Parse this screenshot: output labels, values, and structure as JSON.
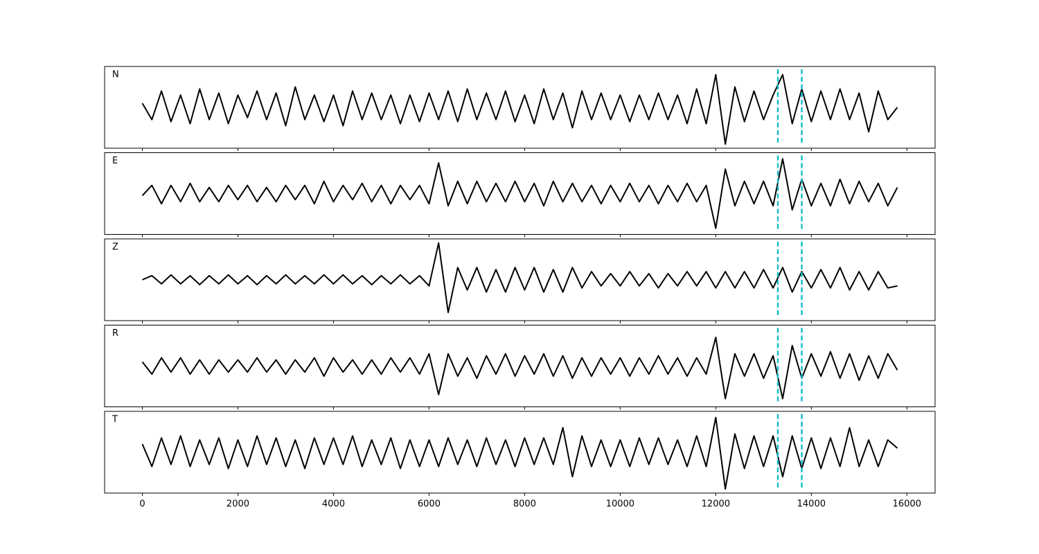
{
  "chart_data": {
    "type": "line",
    "x": [
      0,
      200,
      400,
      600,
      800,
      1000,
      1200,
      1400,
      1600,
      1800,
      2000,
      2200,
      2400,
      2600,
      2800,
      3000,
      3200,
      3400,
      3600,
      3800,
      4000,
      4200,
      4400,
      4600,
      4800,
      5000,
      5200,
      5400,
      5600,
      5800,
      6000,
      6200,
      6400,
      6600,
      6800,
      7000,
      7200,
      7400,
      7600,
      7800,
      8000,
      8200,
      8400,
      8600,
      8800,
      9000,
      9200,
      9400,
      9600,
      9800,
      10000,
      10200,
      10400,
      10600,
      10800,
      11000,
      11200,
      11400,
      11600,
      11800,
      12000,
      12200,
      12400,
      12600,
      12800,
      13000,
      13200,
      13400,
      13600,
      13800,
      14000,
      14200,
      14400,
      14600,
      14800,
      15000,
      15200,
      15400,
      15600,
      15800
    ],
    "xlim": [
      -790,
      16590
    ],
    "xticks": [
      0,
      2000,
      4000,
      6000,
      8000,
      10000,
      12000,
      14000,
      16000
    ],
    "ylim": [
      -1,
      1
    ],
    "vlines": {
      "x": [
        13300,
        13800
      ],
      "color": "#17becf",
      "style": "dashed"
    },
    "series": [
      {
        "name": "N",
        "color": "#000000",
        "values": [
          0.1,
          -0.3,
          0.4,
          -0.35,
          0.3,
          -0.4,
          0.45,
          -0.3,
          0.35,
          -0.4,
          0.3,
          -0.25,
          0.4,
          -0.3,
          0.35,
          -0.45,
          0.5,
          -0.3,
          0.3,
          -0.35,
          0.3,
          -0.45,
          0.4,
          -0.3,
          0.35,
          -0.3,
          0.3,
          -0.4,
          0.3,
          -0.35,
          0.35,
          -0.3,
          0.4,
          -0.35,
          0.45,
          -0.3,
          0.35,
          -0.3,
          0.4,
          -0.35,
          0.3,
          -0.4,
          0.45,
          -0.3,
          0.35,
          -0.5,
          0.4,
          -0.3,
          0.35,
          -0.3,
          0.3,
          -0.35,
          0.3,
          -0.3,
          0.35,
          -0.3,
          0.3,
          -0.4,
          0.45,
          -0.4,
          0.8,
          -0.9,
          0.5,
          -0.35,
          0.4,
          -0.3,
          0.3,
          0.8,
          -0.4,
          0.45,
          -0.35,
          0.4,
          -0.3,
          0.45,
          -0.3,
          0.35,
          -0.6,
          0.4,
          -0.3,
          0.0
        ]
      },
      {
        "name": "E",
        "color": "#000000",
        "values": [
          -0.05,
          0.2,
          -0.25,
          0.2,
          -0.2,
          0.25,
          -0.2,
          0.15,
          -0.2,
          0.2,
          -0.15,
          0.2,
          -0.2,
          0.15,
          -0.2,
          0.2,
          -0.15,
          0.2,
          -0.25,
          0.3,
          -0.2,
          0.2,
          -0.15,
          0.25,
          -0.2,
          0.2,
          -0.25,
          0.2,
          -0.15,
          0.2,
          -0.25,
          0.75,
          -0.3,
          0.3,
          -0.25,
          0.3,
          -0.2,
          0.25,
          -0.2,
          0.3,
          -0.2,
          0.25,
          -0.3,
          0.3,
          -0.2,
          0.25,
          -0.2,
          0.2,
          -0.25,
          0.2,
          -0.2,
          0.25,
          -0.2,
          0.2,
          -0.25,
          0.2,
          -0.2,
          0.25,
          -0.2,
          0.2,
          -0.85,
          0.6,
          -0.3,
          0.3,
          -0.25,
          0.3,
          -0.3,
          0.85,
          -0.4,
          0.35,
          -0.3,
          0.25,
          -0.3,
          0.35,
          -0.25,
          0.3,
          -0.2,
          0.25,
          -0.3,
          0.15
        ]
      },
      {
        "name": "Z",
        "color": "#000000",
        "values": [
          0.0,
          0.1,
          -0.1,
          0.12,
          -0.1,
          0.1,
          -0.12,
          0.1,
          -0.1,
          0.12,
          -0.1,
          0.1,
          -0.12,
          0.1,
          -0.1,
          0.12,
          -0.1,
          0.1,
          -0.1,
          0.12,
          -0.1,
          0.12,
          -0.1,
          0.1,
          -0.12,
          0.1,
          -0.1,
          0.12,
          -0.1,
          0.1,
          -0.15,
          0.9,
          -0.8,
          0.3,
          -0.25,
          0.3,
          -0.3,
          0.25,
          -0.3,
          0.3,
          -0.25,
          0.3,
          -0.3,
          0.25,
          -0.3,
          0.3,
          -0.2,
          0.2,
          -0.15,
          0.15,
          -0.15,
          0.2,
          -0.15,
          0.15,
          -0.2,
          0.15,
          -0.15,
          0.2,
          -0.15,
          0.2,
          -0.2,
          0.2,
          -0.2,
          0.2,
          -0.2,
          0.25,
          -0.2,
          0.3,
          -0.3,
          0.2,
          -0.2,
          0.25,
          -0.2,
          0.3,
          -0.25,
          0.2,
          -0.25,
          0.2,
          -0.2,
          -0.15
        ]
      },
      {
        "name": "R",
        "color": "#000000",
        "values": [
          0.1,
          -0.2,
          0.2,
          -0.15,
          0.2,
          -0.2,
          0.15,
          -0.2,
          0.15,
          -0.15,
          0.15,
          -0.15,
          0.2,
          -0.15,
          0.15,
          -0.2,
          0.15,
          -0.15,
          0.2,
          -0.25,
          0.2,
          -0.15,
          0.15,
          -0.2,
          0.15,
          -0.2,
          0.2,
          -0.15,
          0.2,
          -0.2,
          0.3,
          -0.7,
          0.3,
          -0.25,
          0.2,
          -0.3,
          0.25,
          -0.2,
          0.3,
          -0.25,
          0.25,
          -0.2,
          0.3,
          -0.25,
          0.25,
          -0.3,
          0.2,
          -0.25,
          0.2,
          -0.2,
          0.2,
          -0.25,
          0.2,
          -0.2,
          0.25,
          -0.2,
          0.2,
          -0.25,
          0.2,
          -0.2,
          0.7,
          -0.8,
          0.3,
          -0.25,
          0.3,
          -0.3,
          0.25,
          -0.8,
          0.5,
          -0.3,
          0.3,
          -0.25,
          0.35,
          -0.3,
          0.3,
          -0.35,
          0.25,
          -0.3,
          0.3,
          -0.1
        ]
      },
      {
        "name": "T",
        "color": "#000000",
        "values": [
          0.2,
          -0.35,
          0.35,
          -0.3,
          0.4,
          -0.35,
          0.3,
          -0.3,
          0.35,
          -0.4,
          0.3,
          -0.35,
          0.4,
          -0.3,
          0.35,
          -0.35,
          0.3,
          -0.4,
          0.35,
          -0.3,
          0.35,
          -0.3,
          0.4,
          -0.35,
          0.3,
          -0.3,
          0.35,
          -0.4,
          0.3,
          -0.35,
          0.3,
          -0.35,
          0.35,
          -0.3,
          0.3,
          -0.35,
          0.35,
          -0.3,
          0.3,
          -0.35,
          0.35,
          -0.3,
          0.35,
          -0.3,
          0.6,
          -0.6,
          0.4,
          -0.35,
          0.3,
          -0.35,
          0.3,
          -0.35,
          0.35,
          -0.3,
          0.35,
          -0.3,
          0.3,
          -0.35,
          0.4,
          -0.35,
          0.85,
          -0.9,
          0.45,
          -0.4,
          0.4,
          -0.35,
          0.4,
          -0.6,
          0.4,
          -0.4,
          0.35,
          -0.4,
          0.35,
          -0.35,
          0.6,
          -0.35,
          0.3,
          -0.35,
          0.3,
          0.1
        ]
      }
    ]
  }
}
